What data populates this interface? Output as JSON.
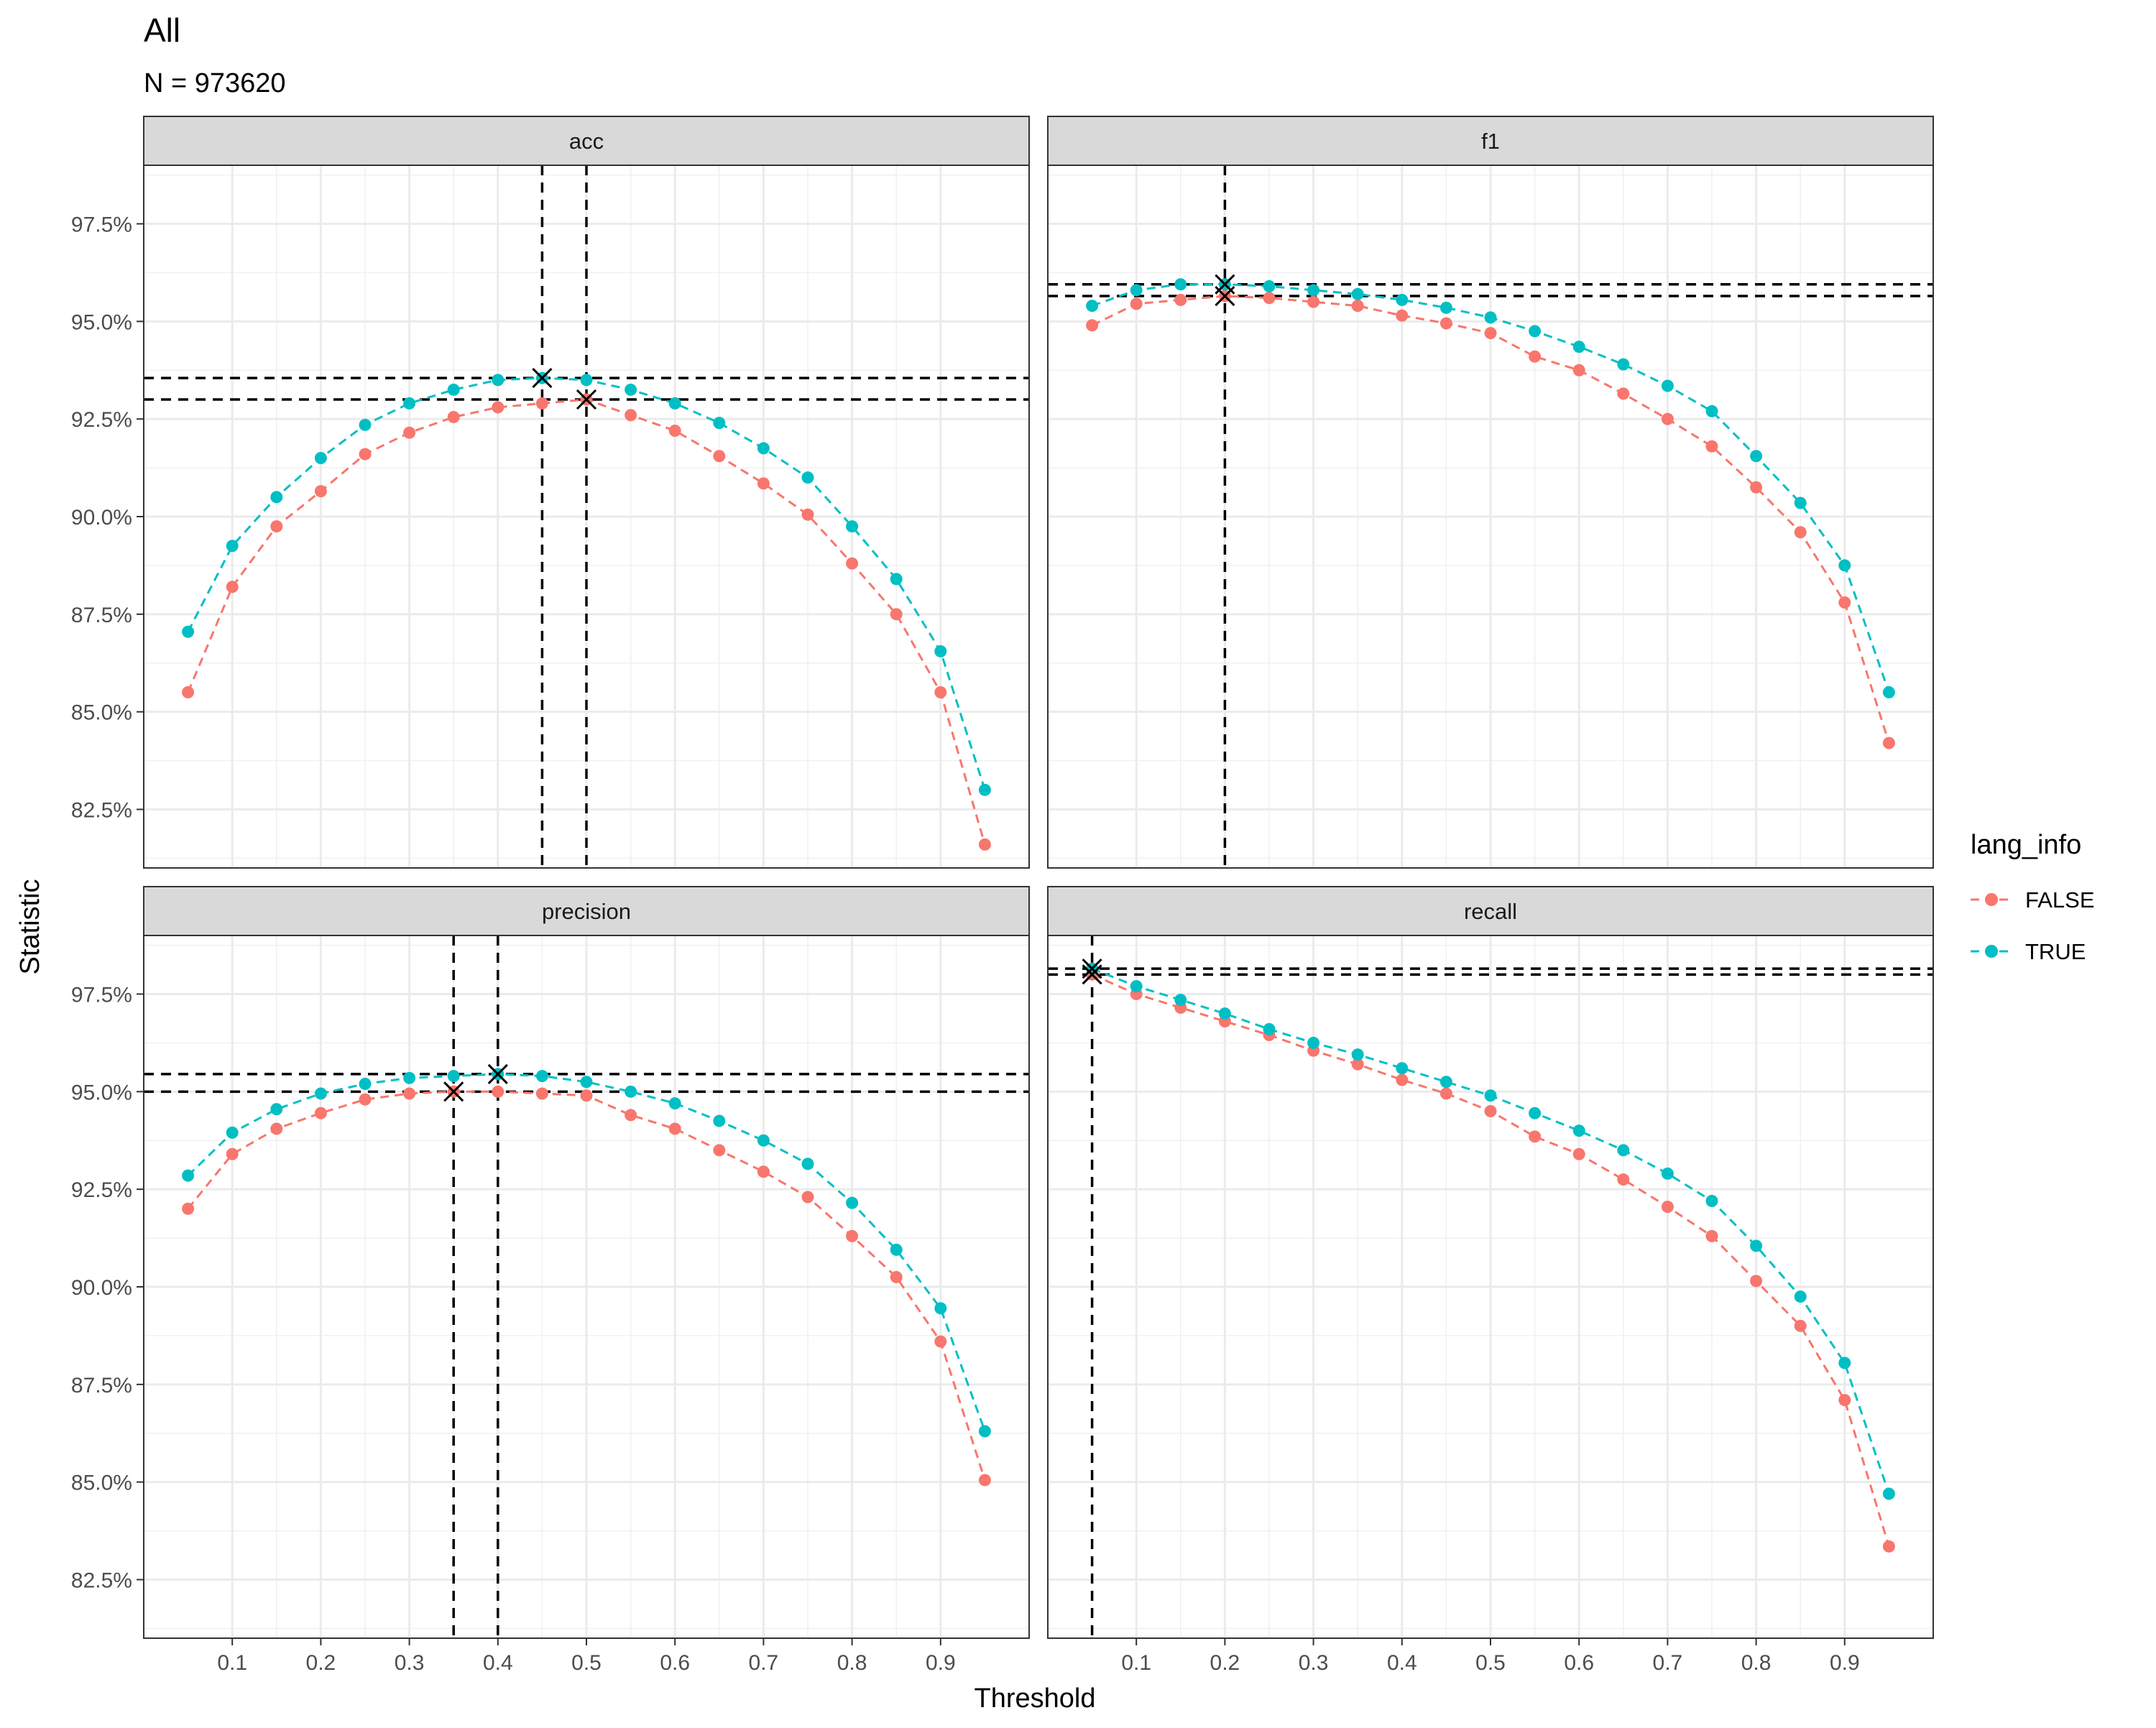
{
  "chart_data": {
    "type": "line",
    "title": "All",
    "subtitle": "N = 973620",
    "xlabel": "Threshold",
    "ylabel": "Statistic",
    "xlim": [
      0.0,
      1.0
    ],
    "ylim": [
      0.81,
      0.99
    ],
    "x_ticks": [
      0.1,
      0.2,
      0.3,
      0.4,
      0.5,
      0.6,
      0.7,
      0.8,
      0.9
    ],
    "x_tick_labels": [
      "0.1",
      "0.2",
      "0.3",
      "0.4",
      "0.5",
      "0.6",
      "0.7",
      "0.8",
      "0.9"
    ],
    "y_ticks": [
      0.825,
      0.85,
      0.875,
      0.9,
      0.925,
      0.95,
      0.975
    ],
    "y_tick_labels": [
      "82.5%",
      "85.0%",
      "87.5%",
      "90.0%",
      "92.5%",
      "95.0%",
      "97.5%"
    ],
    "grid": true,
    "legend": {
      "title": "lang_info",
      "position": "right",
      "entries": [
        {
          "label": "FALSE",
          "color": "#F8766D"
        },
        {
          "label": "TRUE",
          "color": "#00BFC4"
        }
      ]
    },
    "x": [
      0.05,
      0.1,
      0.15,
      0.2,
      0.25,
      0.3,
      0.35,
      0.4,
      0.45,
      0.5,
      0.55,
      0.6,
      0.65,
      0.7,
      0.75,
      0.8,
      0.85,
      0.9,
      0.95
    ],
    "panels": [
      {
        "label": "acc",
        "series": [
          {
            "lang_info": "FALSE",
            "color": "#F8766D",
            "values": [
              0.855,
              0.882,
              0.8975,
              0.9065,
              0.916,
              0.9215,
              0.9255,
              0.928,
              0.929,
              0.93,
              0.926,
              0.922,
              0.9155,
              0.9085,
              0.9005,
              0.888,
              0.875,
              0.855,
              0.816
            ]
          },
          {
            "lang_info": "TRUE",
            "color": "#00BFC4",
            "values": [
              0.8705,
              0.8925,
              0.905,
              0.915,
              0.9235,
              0.929,
              0.9325,
              0.935,
              0.9355,
              0.935,
              0.9325,
              0.929,
              0.924,
              0.9175,
              0.91,
              0.8975,
              0.884,
              0.8655,
              0.83
            ]
          }
        ],
        "best": [
          {
            "lang_info": "FALSE",
            "x": 0.5,
            "y": 0.93
          },
          {
            "lang_info": "TRUE",
            "x": 0.45,
            "y": 0.9355
          }
        ]
      },
      {
        "label": "f1",
        "series": [
          {
            "lang_info": "FALSE",
            "color": "#F8766D",
            "values": [
              0.949,
              0.9545,
              0.9555,
              0.9565,
              0.956,
              0.955,
              0.954,
              0.9515,
              0.9495,
              0.947,
              0.941,
              0.9375,
              0.9315,
              0.925,
              0.918,
              0.9075,
              0.896,
              0.878,
              0.842
            ]
          },
          {
            "lang_info": "TRUE",
            "color": "#00BFC4",
            "values": [
              0.954,
              0.958,
              0.9595,
              0.9595,
              0.959,
              0.958,
              0.957,
              0.9555,
              0.9535,
              0.951,
              0.9475,
              0.9435,
              0.939,
              0.9335,
              0.927,
              0.9155,
              0.9035,
              0.8875,
              0.855
            ]
          }
        ],
        "best": [
          {
            "lang_info": "FALSE",
            "x": 0.2,
            "y": 0.9565
          },
          {
            "lang_info": "TRUE",
            "x": 0.2,
            "y": 0.9595
          }
        ]
      },
      {
        "label": "precision",
        "series": [
          {
            "lang_info": "FALSE",
            "color": "#F8766D",
            "values": [
              0.92,
              0.934,
              0.9405,
              0.9445,
              0.948,
              0.9495,
              0.95,
              0.95,
              0.9495,
              0.949,
              0.944,
              0.9405,
              0.935,
              0.9295,
              0.923,
              0.913,
              0.9025,
              0.886,
              0.8505
            ]
          },
          {
            "lang_info": "TRUE",
            "color": "#00BFC4",
            "values": [
              0.9285,
              0.9395,
              0.9455,
              0.9495,
              0.952,
              0.9535,
              0.954,
              0.9545,
              0.954,
              0.9525,
              0.95,
              0.947,
              0.9425,
              0.9375,
              0.9315,
              0.9215,
              0.9095,
              0.8945,
              0.863
            ]
          }
        ],
        "best": [
          {
            "lang_info": "FALSE",
            "x": 0.35,
            "y": 0.95
          },
          {
            "lang_info": "TRUE",
            "x": 0.4,
            "y": 0.9545
          }
        ]
      },
      {
        "label": "recall",
        "series": [
          {
            "lang_info": "FALSE",
            "color": "#F8766D",
            "values": [
              0.98,
              0.975,
              0.9715,
              0.968,
              0.9645,
              0.9605,
              0.957,
              0.953,
              0.9495,
              0.945,
              0.9385,
              0.934,
              0.9275,
              0.9205,
              0.913,
              0.9015,
              0.89,
              0.871,
              0.8335
            ]
          },
          {
            "lang_info": "TRUE",
            "color": "#00BFC4",
            "values": [
              0.9815,
              0.977,
              0.9735,
              0.97,
              0.966,
              0.9625,
              0.9595,
              0.956,
              0.9525,
              0.949,
              0.9445,
              0.94,
              0.935,
              0.929,
              0.922,
              0.9105,
              0.8975,
              0.8805,
              0.847
            ]
          }
        ],
        "best": [
          {
            "lang_info": "FALSE",
            "x": 0.05,
            "y": 0.98
          },
          {
            "lang_info": "TRUE",
            "x": 0.05,
            "y": 0.9815
          }
        ]
      }
    ]
  }
}
